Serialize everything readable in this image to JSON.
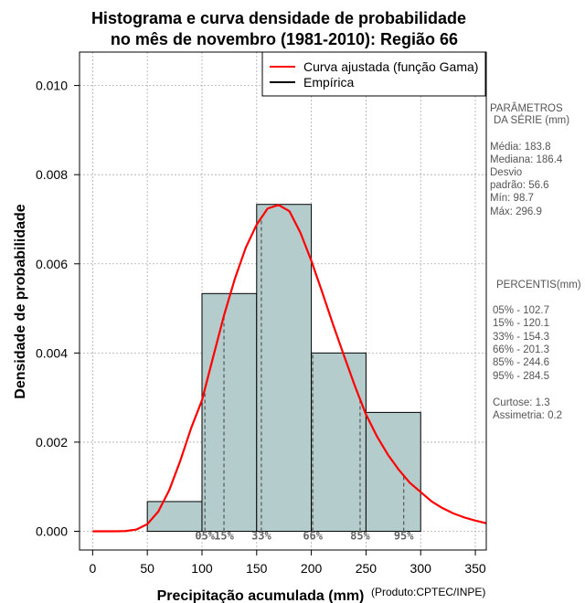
{
  "chart_data": {
    "type": "histogram",
    "title_line1": "Histograma e curva densidade de probabilidade",
    "title_line2": "no mês de novembro (1981-2010): Região 66",
    "xlabel": "Precipitação acumulada (mm)",
    "ylabel": "Densidade de probabilidade",
    "credit": "(Produto:CPTEC/INPE)",
    "xlim": [
      -12,
      360
    ],
    "ylim": [
      -0.00042,
      0.01075
    ],
    "x_ticks": [
      0,
      50,
      100,
      150,
      200,
      250,
      300,
      350
    ],
    "y_ticks": [
      0.0,
      0.002,
      0.004,
      0.006,
      0.008,
      0.01
    ],
    "y_tick_labels": [
      "0.000",
      "0.002",
      "0.004",
      "0.006",
      "0.008",
      "0.010"
    ],
    "grid": true,
    "bins": [
      {
        "x0": 50,
        "x1": 100,
        "density": 0.000667
      },
      {
        "x0": 100,
        "x1": 150,
        "density": 0.005333
      },
      {
        "x0": 150,
        "x1": 200,
        "density": 0.007333
      },
      {
        "x0": 200,
        "x1": 250,
        "density": 0.004
      },
      {
        "x0": 250,
        "x1": 300,
        "density": 0.002667
      }
    ],
    "bar_color": "#b4cccc",
    "curve_color": "#ff0000",
    "curve": {
      "name": "Curva ajustada (função Gama)",
      "distribution": "gamma",
      "x": [
        0,
        10,
        20,
        30,
        40,
        50,
        60,
        70,
        80,
        90,
        100,
        110,
        120,
        130,
        140,
        150,
        160,
        170,
        180,
        190,
        200,
        210,
        220,
        230,
        240,
        250,
        260,
        270,
        280,
        290,
        300,
        310,
        320,
        330,
        340,
        350,
        360
      ],
      "y": [
        0.0,
        0.0,
        2.1e-07,
        5.07e-06,
        3.924e-05,
        0.00016037,
        0.00044039,
        0.00091882,
        0.00157078,
        0.00231014,
        0.00294,
        0.00389,
        0.00483,
        0.00566,
        0.00636,
        0.00688,
        0.00724,
        0.00732,
        0.00718,
        0.0067,
        0.00607,
        0.00536,
        0.00463,
        0.00393,
        0.00325,
        0.00262,
        0.00213,
        0.00172,
        0.00138,
        0.00109,
        0.00088,
        0.00067,
        0.00052,
        0.0004,
        0.00031,
        0.00024,
        0.00018
      ]
    },
    "empirical_label": "Empírica",
    "percentiles": [
      {
        "label": "05%",
        "value": 102.7
      },
      {
        "label": "15%",
        "value": 120.1
      },
      {
        "label": "33%",
        "value": 154.3
      },
      {
        "label": "66%",
        "value": 201.3
      },
      {
        "label": "85%",
        "value": 244.6
      },
      {
        "label": "95%",
        "value": 284.5
      }
    ],
    "side_panel": {
      "params_title_1": "PARÂMETROS",
      "params_title_2": "DA SÉRIE (mm)",
      "media": "Média:  183.8",
      "mediana": "Mediana:  186.4",
      "desvio_1": "Desvio",
      "desvio_2": "padrão:  56.6",
      "min": "Mín:  98.7",
      "max": "Máx:  296.9",
      "percentis_title": "PERCENTIS(mm)",
      "p05": "05% -  102.7",
      "p15": "15% -  120.1",
      "p33": "33% -  154.3",
      "p66": "66% -  201.3",
      "p85": "85% -  244.6",
      "p95": "95% -  284.5",
      "curtose": "Curtose:  1.3",
      "assimetria": "Assimetria:  0.2"
    }
  }
}
